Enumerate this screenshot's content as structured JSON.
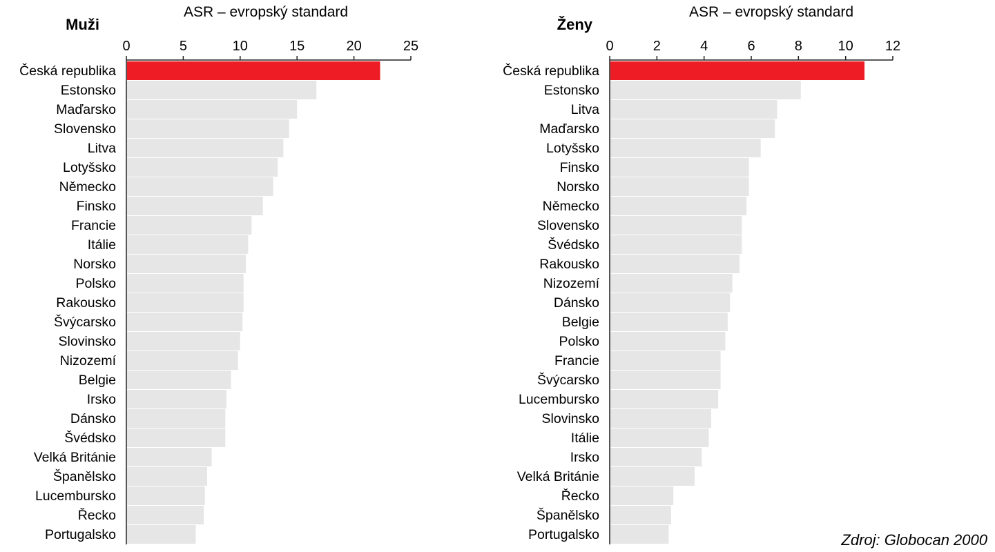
{
  "source": "Zdroj: Globocan 2000",
  "chart_data": [
    {
      "type": "bar",
      "orientation": "horizontal",
      "title": "Muži",
      "xlabel": "ASR – evropský standard",
      "xlim": [
        0,
        25
      ],
      "ticks": [
        0,
        5,
        10,
        15,
        20,
        25
      ],
      "highlight_color": "#ee1c25",
      "bar_color": "#e6e6e7",
      "categories": [
        "Česká republika",
        "Estonsko",
        "Maďarsko",
        "Slovensko",
        "Litva",
        "Lotyšsko",
        "Německo",
        "Finsko",
        "Francie",
        "Itálie",
        "Norsko",
        "Polsko",
        "Rakousko",
        "Švýcarsko",
        "Slovinsko",
        "Nizozemí",
        "Belgie",
        "Irsko",
        "Dánsko",
        "Švédsko",
        "Velká Británie",
        "Španělsko",
        "Lucembursko",
        "Řecko",
        "Portugalsko"
      ],
      "values": [
        22.3,
        16.7,
        15.0,
        14.3,
        13.8,
        13.3,
        12.9,
        12.0,
        11.0,
        10.7,
        10.5,
        10.3,
        10.3,
        10.2,
        10.0,
        9.8,
        9.2,
        8.8,
        8.7,
        8.7,
        7.5,
        7.1,
        6.9,
        6.8,
        6.1
      ]
    },
    {
      "type": "bar",
      "orientation": "horizontal",
      "title": "Ženy",
      "xlabel": "ASR – evropský standard",
      "xlim": [
        0,
        12
      ],
      "ticks": [
        0,
        2,
        4,
        6,
        8,
        10,
        12
      ],
      "highlight_color": "#ee1c25",
      "bar_color": "#e6e6e7",
      "categories": [
        "Česká republika",
        "Estonsko",
        "Litva",
        "Maďarsko",
        "Lotyšsko",
        "Finsko",
        "Norsko",
        "Německo",
        "Slovensko",
        "Švédsko",
        "Rakousko",
        "Nizozemí",
        "Dánsko",
        "Belgie",
        "Polsko",
        "Francie",
        "Švýcarsko",
        "Lucembursko",
        "Slovinsko",
        "Itálie",
        "Irsko",
        "Velká Británie",
        "Řecko",
        "Španělsko",
        "Portugalsko"
      ],
      "values": [
        10.8,
        8.1,
        7.1,
        7.0,
        6.4,
        5.9,
        5.9,
        5.8,
        5.6,
        5.6,
        5.5,
        5.2,
        5.1,
        5.0,
        4.9,
        4.7,
        4.7,
        4.6,
        4.3,
        4.2,
        3.9,
        3.6,
        2.7,
        2.6,
        2.5
      ]
    }
  ]
}
